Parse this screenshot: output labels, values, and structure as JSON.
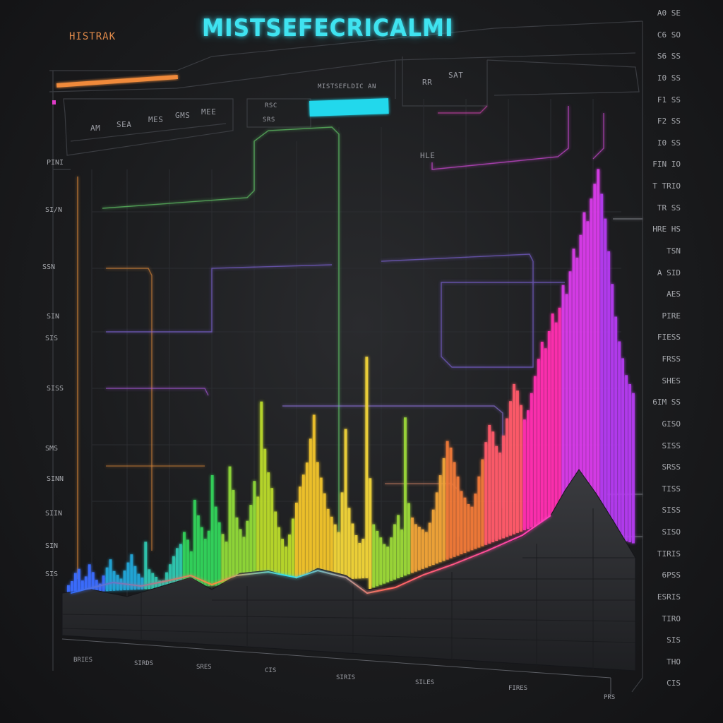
{
  "header": {
    "title": "MISTSEFECRICALMI",
    "subtitle": "HISTRAK",
    "panel_labels": [
      "MISTSEFLDIC AN",
      "RR",
      "SAT",
      "RSC",
      "SRS",
      "MES",
      "GMS",
      "MEE",
      "AM",
      "SEA",
      "HLE"
    ]
  },
  "left_labels": [
    "PINI",
    "SI/N",
    "SSN",
    "SIN",
    "SIS",
    "SISS",
    "SMS",
    "SINN",
    "SIIN",
    "SIN",
    "SIS"
  ],
  "right_labels": [
    "A0 SE",
    "C6 SO",
    "S6 SS",
    "I0 SS",
    "F1 SS",
    "F2 SS",
    "I0 SS",
    "FIN IO",
    "T TRIO",
    "TR SS",
    "HRE HS",
    "TSN",
    "A SID",
    "AES",
    "PIRE",
    "FIESS",
    "FRSS",
    "SHES",
    "6IM SS",
    "GISO",
    "SISS",
    "SRSS",
    "TISS",
    "SISS",
    "SISO",
    "TIRIS",
    "6PSS",
    "ESRIS",
    "TIRO",
    "SIS",
    "THO",
    "CIS"
  ],
  "x_labels": [
    "BRIES",
    "SIRDS",
    "SRES",
    "CIS",
    "SIRIS",
    "SILES",
    "FIRES",
    "PRS"
  ],
  "colors": {
    "background": "#1c1d1f",
    "title": "#3fe3f0",
    "accent_orange": "#f08a3a",
    "accent_cyan": "#22d8ec",
    "accent_magenta": "#e03cc8",
    "terrain": "#2b2c2f"
  },
  "chart_data": {
    "type": "bar",
    "title": "MISTSEFECRICALMI",
    "series": [
      {
        "values": [
          2,
          3,
          5,
          6,
          3,
          4,
          7,
          5,
          3,
          2,
          4,
          6,
          8,
          5,
          4,
          3,
          5,
          7,
          9,
          6,
          4,
          3,
          12,
          5,
          4,
          3,
          2,
          2,
          4,
          6,
          8,
          10,
          11,
          14,
          12,
          9,
          22,
          18,
          15,
          12,
          14,
          28,
          20,
          16,
          13,
          11,
          30,
          24,
          17,
          14,
          12,
          16,
          20,
          26,
          22,
          46,
          34,
          28,
          24,
          18,
          14,
          11,
          9,
          12,
          16,
          20,
          24,
          27,
          30,
          36,
          42,
          30,
          26,
          22,
          18,
          16,
          14,
          12,
          22,
          38,
          18,
          14,
          11,
          9,
          10,
          56,
          28,
          16,
          14,
          12,
          10,
          9,
          11,
          14,
          16,
          12,
          40,
          18,
          14,
          12,
          11,
          10,
          9,
          11,
          14,
          18,
          22,
          26,
          30,
          28,
          24,
          20,
          16,
          14,
          12,
          11,
          14,
          18,
          22,
          26,
          30,
          28,
          24,
          22,
          26,
          30,
          34,
          38,
          36,
          32,
          28,
          30,
          34,
          38,
          42,
          46,
          44,
          48,
          52,
          50,
          54,
          60,
          58,
          64,
          70,
          68,
          74,
          80,
          78,
          84,
          88,
          92,
          86,
          80,
          72,
          64,
          56,
          50,
          46,
          42,
          40,
          38
        ]
      }
    ],
    "ylim": [
      0,
      100
    ],
    "grid": true,
    "legend": "none"
  }
}
